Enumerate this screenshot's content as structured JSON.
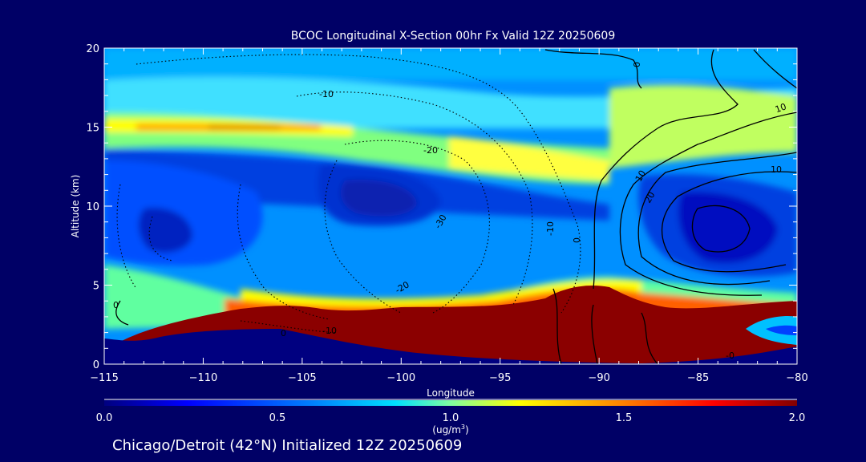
{
  "chart_data": {
    "type": "heatmap",
    "title": "BCOC Longitudinal X-Section 00hr  Fx Valid 12Z 20250609",
    "xlabel": "Longitude",
    "ylabel": "Altitude (km)",
    "xlim": [
      -115,
      -80
    ],
    "ylim": [
      0,
      20
    ],
    "x_ticks": [
      "-115",
      "-110",
      "-105",
      "-100",
      "-95",
      "-90",
      "-85",
      "-80"
    ],
    "y_ticks": [
      "0",
      "5",
      "10",
      "15",
      "20"
    ],
    "colorbar": {
      "min": 0.0,
      "max": 2.0,
      "ticks": [
        "0.0",
        "0.5",
        "1.0",
        "1.5",
        "2.0"
      ],
      "units_main": "(ug/m",
      "units_sup": "3",
      "units_end": ")"
    },
    "contour_labels": [
      "-10",
      "-20",
      "-30",
      "-10",
      "-20",
      "-10",
      "0",
      "0",
      "10",
      "20",
      "10",
      "10",
      "0",
      "0",
      "-0"
    ],
    "grid": false,
    "legend": "none"
  },
  "footer": "Chicago/Detroit (42°N) Initialized 12Z 20250609",
  "colors": {
    "background": "#000066",
    "terrain": "#000080",
    "low": "#0000cc",
    "high": "#8b0000"
  }
}
